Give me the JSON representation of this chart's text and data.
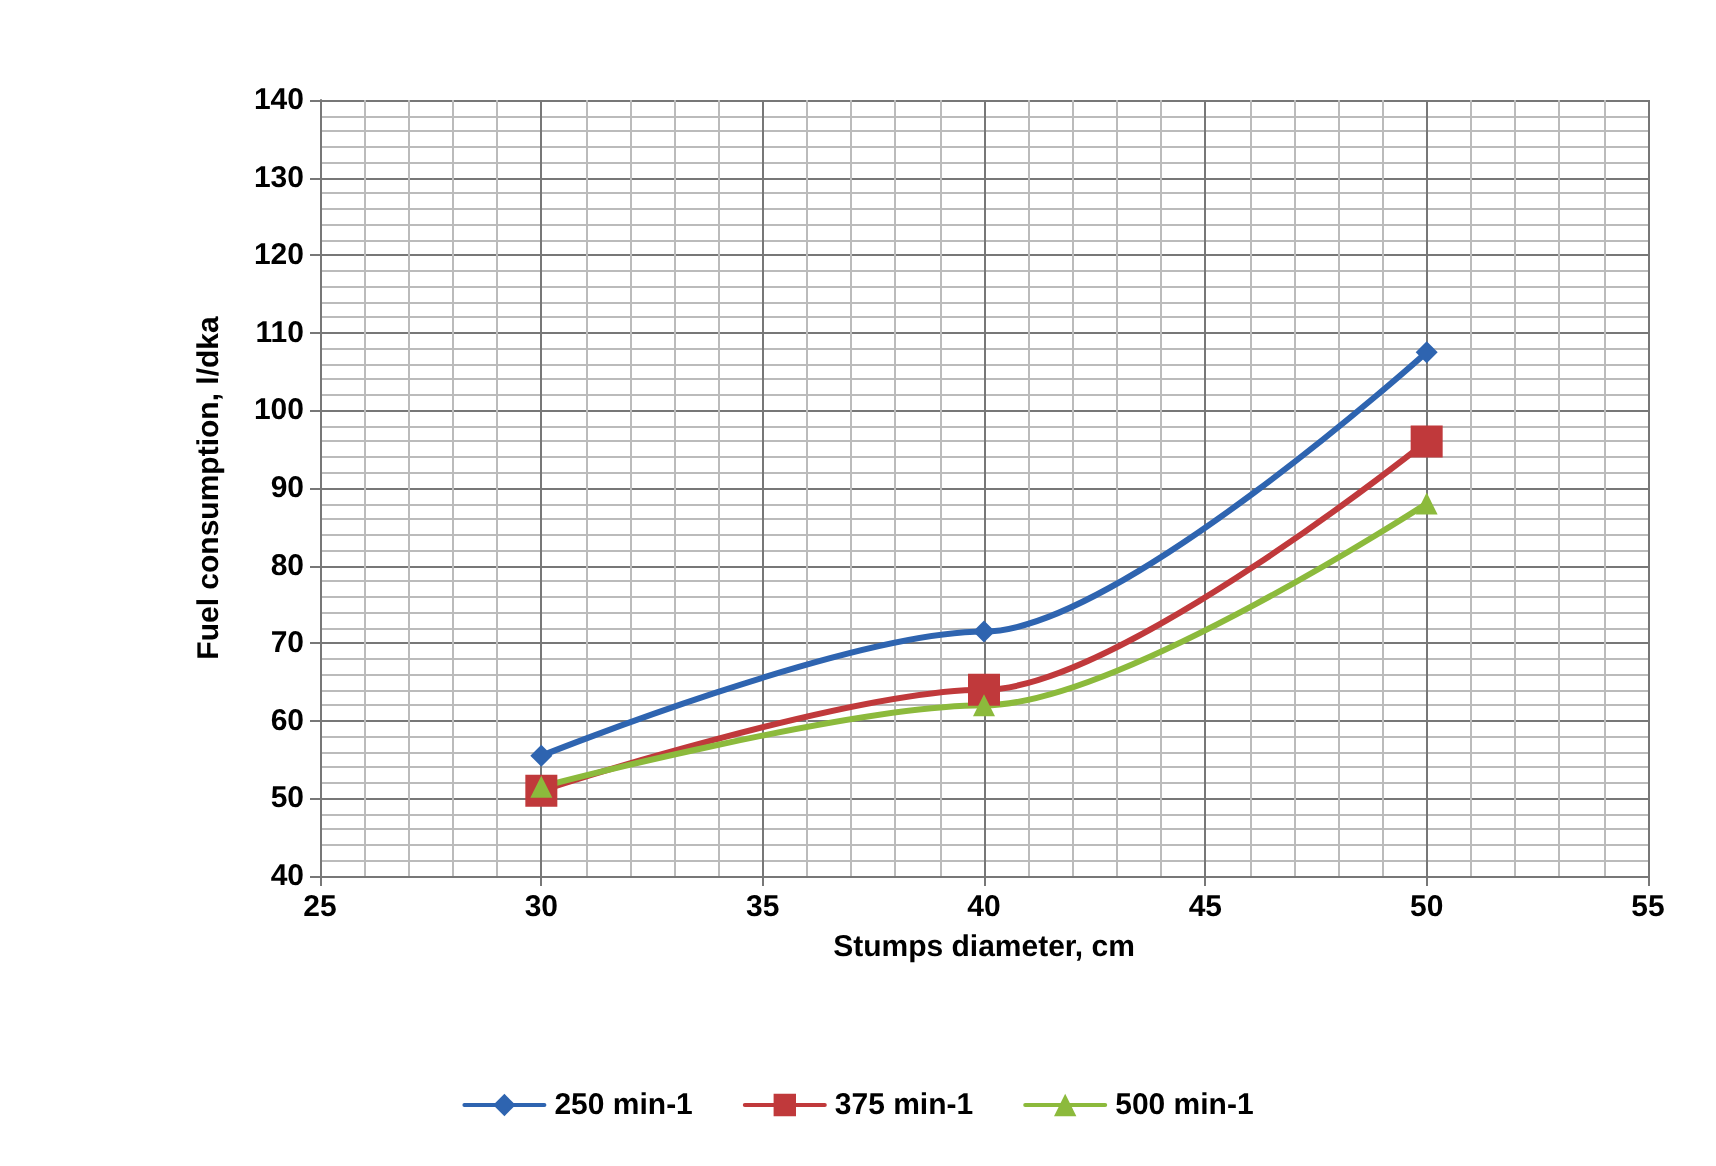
{
  "chart_data": {
    "type": "line",
    "xlabel": "Stumps diameter, cm",
    "ylabel": "Fuel consumption, l/dka",
    "x": [
      30,
      40,
      50
    ],
    "series": [
      {
        "name": "250 min-1",
        "color": "#2e64b0",
        "values": [
          55.5,
          71.5,
          107.5
        ],
        "marker": "diamond"
      },
      {
        "name": "375 min-1",
        "color": "#c0393b",
        "values": [
          51,
          64,
          96
        ],
        "marker": "square"
      },
      {
        "name": "500 min-1",
        "color": "#8cba3c",
        "values": [
          51.5,
          62,
          88
        ],
        "marker": "triangle"
      }
    ],
    "xlim": [
      25,
      55
    ],
    "xticks": [
      25,
      30,
      35,
      40,
      45,
      50,
      55
    ],
    "ylim": [
      40,
      140
    ],
    "yticks": [
      40,
      50,
      60,
      70,
      80,
      90,
      100,
      110,
      120,
      130,
      140
    ],
    "grid": true,
    "legend": "bottom",
    "line_style": "solid"
  }
}
